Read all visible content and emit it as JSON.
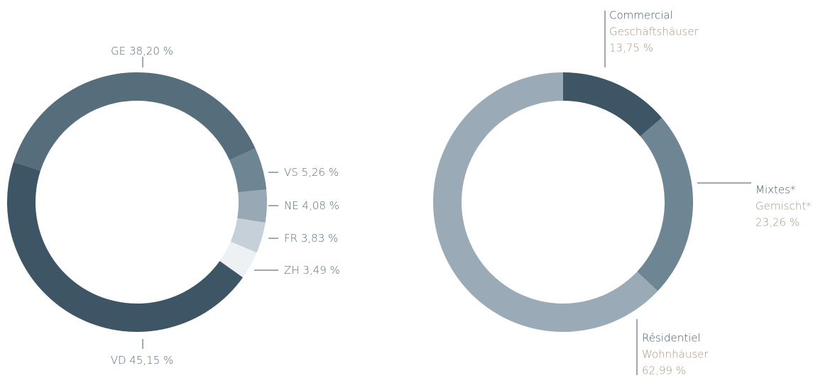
{
  "chart_data": [
    {
      "type": "donut",
      "categories": [
        "GE",
        "VS",
        "NE",
        "FR",
        "ZH",
        "VD"
      ],
      "values": [
        38.2,
        5.26,
        4.08,
        3.83,
        3.49,
        45.15
      ],
      "value_labels": [
        "38,20 %",
        "5,26 %",
        "4,08 %",
        "3,83 %",
        "3,49 %",
        "45,15 %"
      ],
      "colors": [
        "#566d7b",
        "#6e8594",
        "#98a8b4",
        "#c5d0d8",
        "#eef1f4",
        "#3e5566"
      ]
    },
    {
      "type": "donut",
      "categories": [
        "Commercial",
        "Mixtes*",
        "Résidentiel"
      ],
      "categories_secondary": [
        "Geschäftshäuser",
        "Gemischt*",
        "Wohnhäuser"
      ],
      "values": [
        13.75,
        23.26,
        62.99
      ],
      "value_labels": [
        "13,75 %",
        "23,26 %",
        "62,99 %"
      ],
      "colors": [
        "#3e5566",
        "#6e8594",
        "#9aabb7"
      ]
    }
  ]
}
